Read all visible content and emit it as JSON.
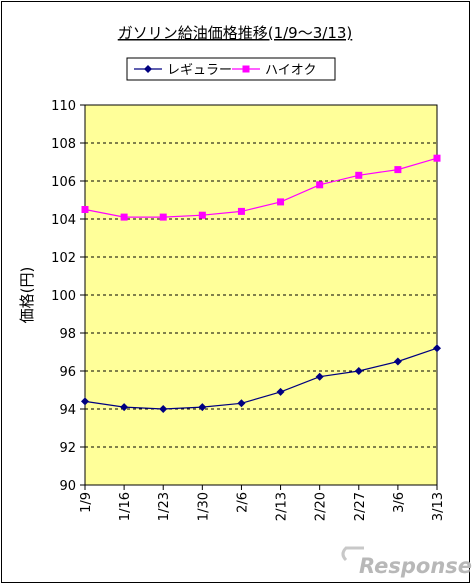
{
  "chart_data": {
    "type": "line",
    "title": "ガソリン給油価格推移(1/9〜3/13)",
    "ylabel": "価格(円)",
    "xlabel": "",
    "categories": [
      "1/9",
      "1/16",
      "1/23",
      "1/30",
      "2/6",
      "2/13",
      "2/20",
      "2/27",
      "3/6",
      "3/13"
    ],
    "ylim": [
      90,
      110
    ],
    "yticks": [
      90,
      92,
      94,
      96,
      98,
      100,
      102,
      104,
      106,
      108,
      110
    ],
    "grid": "horizontal dashed",
    "legend_position": "top",
    "plot_background": "#ffff99",
    "series": [
      {
        "name": "レギュラー",
        "color": "#000080",
        "marker": "diamond",
        "values": [
          94.4,
          94.1,
          94.0,
          94.1,
          94.3,
          94.9,
          95.7,
          96.0,
          96.5,
          97.2
        ]
      },
      {
        "name": "ハイオク",
        "color": "#ff00ff",
        "marker": "square",
        "values": [
          104.5,
          104.1,
          104.1,
          104.2,
          104.4,
          104.9,
          105.8,
          106.3,
          106.6,
          107.2
        ]
      }
    ]
  },
  "watermark": {
    "text": "Response."
  }
}
